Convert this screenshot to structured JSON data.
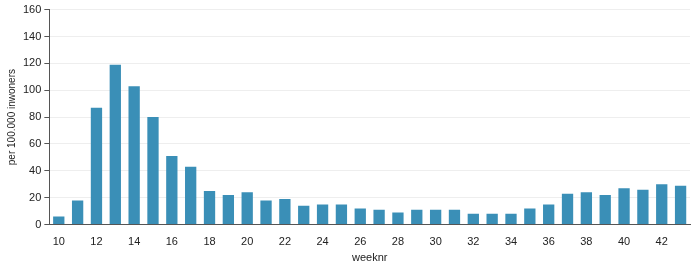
{
  "chart_data": {
    "type": "bar",
    "x_label": "weeknr",
    "y_label": "per 100.000 inwoners",
    "categories": [
      "10",
      null,
      "12",
      null,
      "14",
      null,
      "16",
      null,
      "18",
      null,
      "20",
      null,
      "22",
      null,
      "24",
      null,
      "26",
      null,
      "28",
      null,
      "30",
      null,
      "32",
      null,
      "34",
      null,
      "36",
      null,
      "38",
      null,
      "40",
      null,
      "42",
      null
    ],
    "values": [
      6,
      18,
      87,
      119,
      103,
      80,
      51,
      43,
      25,
      22,
      24,
      18,
      19,
      14,
      15,
      15,
      12,
      11,
      9,
      11,
      11,
      11,
      8,
      8,
      8,
      12,
      15,
      23,
      24,
      22,
      27,
      26,
      30,
      29
    ],
    "color": "#3a8fb7",
    "ylim": [
      0,
      160
    ],
    "yticks": [
      0,
      20,
      40,
      60,
      80,
      100,
      120,
      140,
      160
    ],
    "grid": true
  }
}
